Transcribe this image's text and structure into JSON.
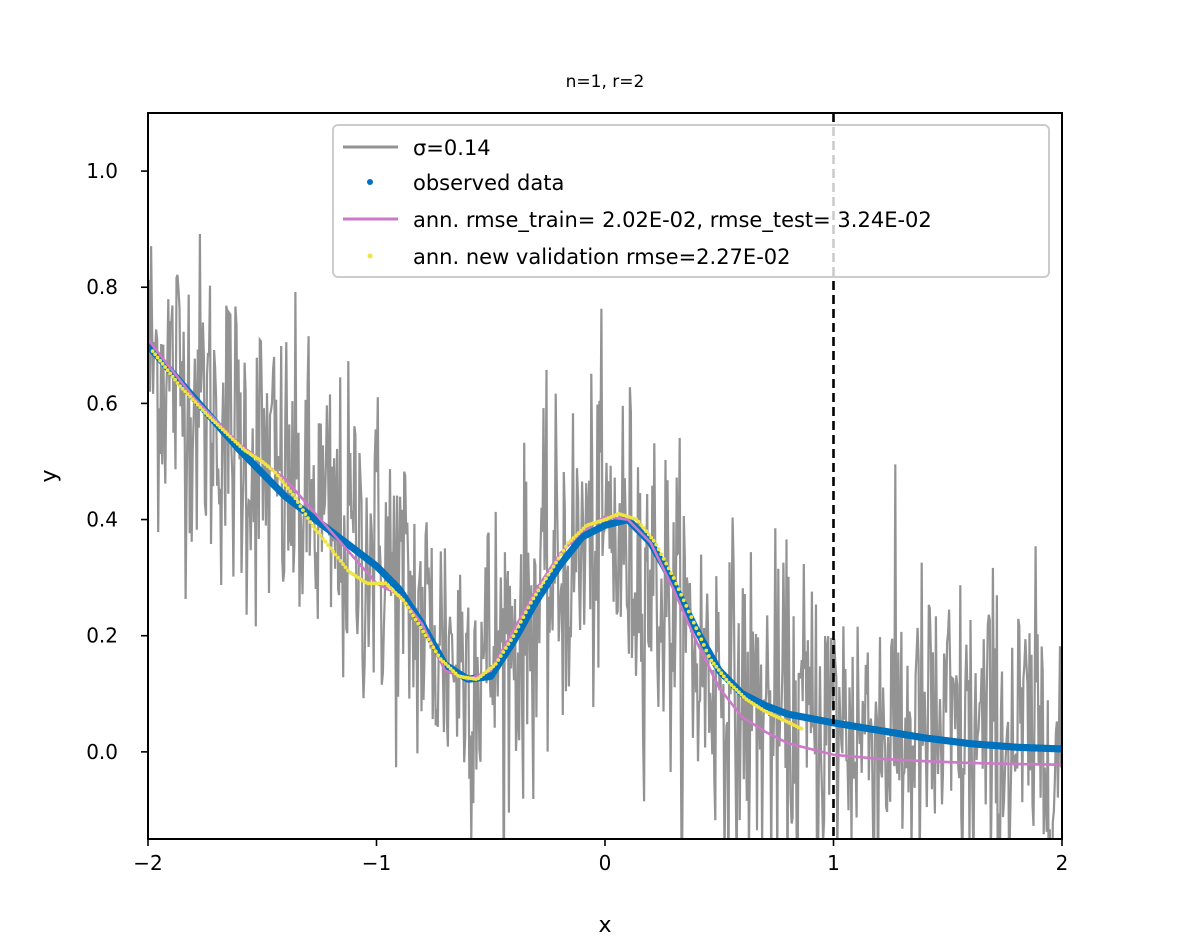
{
  "chart_data": {
    "type": "line",
    "title": "n=1, r=2",
    "xlabel": "x",
    "ylabel": "y",
    "xlim": [
      -2,
      2
    ],
    "ylim": [
      -0.15,
      1.1
    ],
    "xticks": [
      -2,
      -1,
      0,
      1,
      2
    ],
    "xtick_labels": [
      "−2",
      "−1",
      "0",
      "1",
      "2"
    ],
    "yticks": [
      0.0,
      0.2,
      0.4,
      0.6,
      0.8,
      1.0
    ],
    "ytick_labels": [
      "0.0",
      "0.2",
      "0.4",
      "0.6",
      "0.8",
      "1.0"
    ],
    "grid": false,
    "legend_position": "top-right",
    "vline": {
      "x": 1,
      "style": "dashed",
      "color": "#000000"
    },
    "series": [
      {
        "name": "σ=0.14",
        "kind": "noisy-line",
        "color": "#939393",
        "sigma": 0.14,
        "x": [
          -2.0,
          -1.8,
          -1.6,
          -1.4,
          -1.2,
          -1.0,
          -0.8,
          -0.6,
          -0.4,
          -0.2,
          0.0,
          0.2,
          0.4,
          0.6,
          0.8,
          1.0,
          1.2,
          1.4,
          1.6,
          1.8,
          2.0
        ],
        "y": [
          0.68,
          0.62,
          0.53,
          0.46,
          0.38,
          0.35,
          0.22,
          0.15,
          0.19,
          0.31,
          0.38,
          0.31,
          0.16,
          0.08,
          0.05,
          0.05,
          0.04,
          0.03,
          0.02,
          0.02,
          0.0
        ]
      },
      {
        "name": "observed data",
        "kind": "dots",
        "color": "#0072bd",
        "x": [
          -2.0,
          -1.8,
          -1.6,
          -1.4,
          -1.2,
          -1.0,
          -0.9,
          -0.8,
          -0.7,
          -0.6,
          -0.5,
          -0.4,
          -0.3,
          -0.2,
          -0.1,
          0.0,
          0.1,
          0.2,
          0.3,
          0.4,
          0.5,
          0.6,
          0.7,
          0.8,
          1.0,
          1.2,
          1.4,
          1.6,
          1.8,
          2.0
        ],
        "y": [
          0.7,
          0.61,
          0.52,
          0.44,
          0.38,
          0.32,
          0.28,
          0.22,
          0.15,
          0.125,
          0.13,
          0.19,
          0.26,
          0.32,
          0.37,
          0.39,
          0.4,
          0.36,
          0.29,
          0.21,
          0.14,
          0.1,
          0.08,
          0.065,
          0.05,
          0.037,
          0.024,
          0.014,
          0.008,
          0.005
        ]
      },
      {
        "name": "ann.  rmse_train= 2.02E-02, rmse_test= 3.24E-02",
        "kind": "line",
        "color": "#cc79c8",
        "x": [
          -2.0,
          -1.8,
          -1.6,
          -1.4,
          -1.2,
          -1.0,
          -0.9,
          -0.8,
          -0.7,
          -0.6,
          -0.5,
          -0.4,
          -0.3,
          -0.2,
          -0.1,
          0.0,
          0.1,
          0.2,
          0.3,
          0.4,
          0.5,
          0.6,
          0.7,
          0.8,
          1.0,
          1.2,
          1.4,
          1.6,
          1.8,
          2.0
        ],
        "y": [
          0.71,
          0.61,
          0.53,
          0.47,
          0.38,
          0.29,
          0.27,
          0.22,
          0.14,
          0.125,
          0.14,
          0.21,
          0.28,
          0.34,
          0.38,
          0.405,
          0.4,
          0.36,
          0.28,
          0.19,
          0.11,
          0.06,
          0.035,
          0.015,
          -0.005,
          -0.012,
          -0.016,
          -0.019,
          -0.021,
          -0.022
        ]
      },
      {
        "name": "ann.  new validation rmse=2.27E-02",
        "kind": "dots",
        "color": "#f0e442",
        "x": [
          -1.98,
          -1.86,
          -1.74,
          -1.66,
          -1.58,
          -1.5,
          -1.44,
          -1.36,
          -1.28,
          -1.2,
          -1.12,
          -1.04,
          -0.96,
          -0.88,
          -0.8,
          -0.72,
          -0.64,
          -0.56,
          -0.48,
          -0.4,
          -0.32,
          -0.24,
          -0.16,
          -0.08,
          0.0,
          0.06,
          0.14,
          0.22,
          0.3,
          0.38,
          0.46,
          0.54,
          0.62,
          0.7,
          0.78,
          0.86
        ],
        "y": [
          0.69,
          0.63,
          0.58,
          0.55,
          0.52,
          0.5,
          0.48,
          0.44,
          0.39,
          0.35,
          0.31,
          0.29,
          0.29,
          0.26,
          0.21,
          0.16,
          0.13,
          0.125,
          0.15,
          0.2,
          0.26,
          0.31,
          0.36,
          0.39,
          0.4,
          0.41,
          0.4,
          0.36,
          0.3,
          0.23,
          0.16,
          0.12,
          0.09,
          0.07,
          0.055,
          0.04
        ]
      }
    ]
  }
}
